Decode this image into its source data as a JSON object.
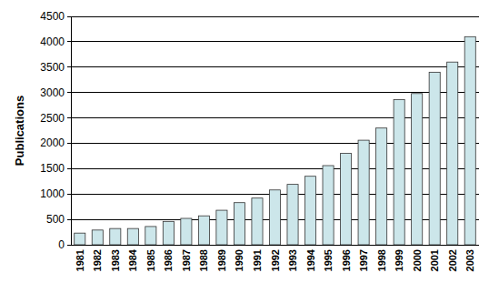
{
  "chart_data": {
    "type": "bar",
    "y_label": "Publications",
    "categories": [
      "1981",
      "1982",
      "1983",
      "1984",
      "1985",
      "1986",
      "1987",
      "1988",
      "1989",
      "1990",
      "1991",
      "1992",
      "1993",
      "1994",
      "1995",
      "1996",
      "1997",
      "1998",
      "1999",
      "2000",
      "2001",
      "2002",
      "2003"
    ],
    "values": [
      230,
      290,
      320,
      320,
      360,
      460,
      520,
      570,
      680,
      830,
      920,
      1080,
      1190,
      1350,
      1560,
      1800,
      2060,
      2300,
      2860,
      2980,
      3400,
      3600,
      4100
    ],
    "color": "#cce6ea",
    "ylim": [
      0,
      4500
    ],
    "yticks": [
      0,
      500,
      1000,
      1500,
      2000,
      2500,
      3000,
      3500,
      4000,
      4500
    ],
    "grid": true
  }
}
